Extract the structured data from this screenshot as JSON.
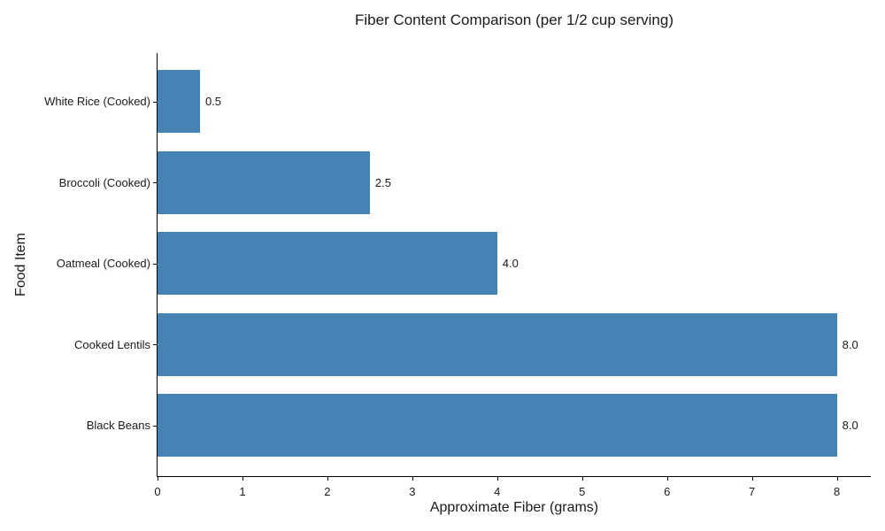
{
  "chart_data": {
    "type": "bar",
    "orientation": "horizontal",
    "title": "Fiber Content Comparison (per 1/2 cup serving)",
    "xlabel": "Approximate Fiber (grams)",
    "ylabel": "Food Item",
    "categories": [
      "White Rice (Cooked)",
      "Broccoli (Cooked)",
      "Oatmeal (Cooked)",
      "Cooked Lentils",
      "Black Beans"
    ],
    "values": [
      0.5,
      2.5,
      4.0,
      8.0,
      8.0
    ],
    "value_labels": [
      "0.5",
      "2.5",
      "4.0",
      "8.0",
      "8.0"
    ],
    "x_ticks": [
      0,
      1,
      2,
      3,
      4,
      5,
      6,
      7,
      8
    ],
    "xlim": [
      0,
      8.4
    ],
    "bar_color": "#4682B4",
    "grid": false,
    "legend_position": "none",
    "background_color": "#ffffff"
  }
}
